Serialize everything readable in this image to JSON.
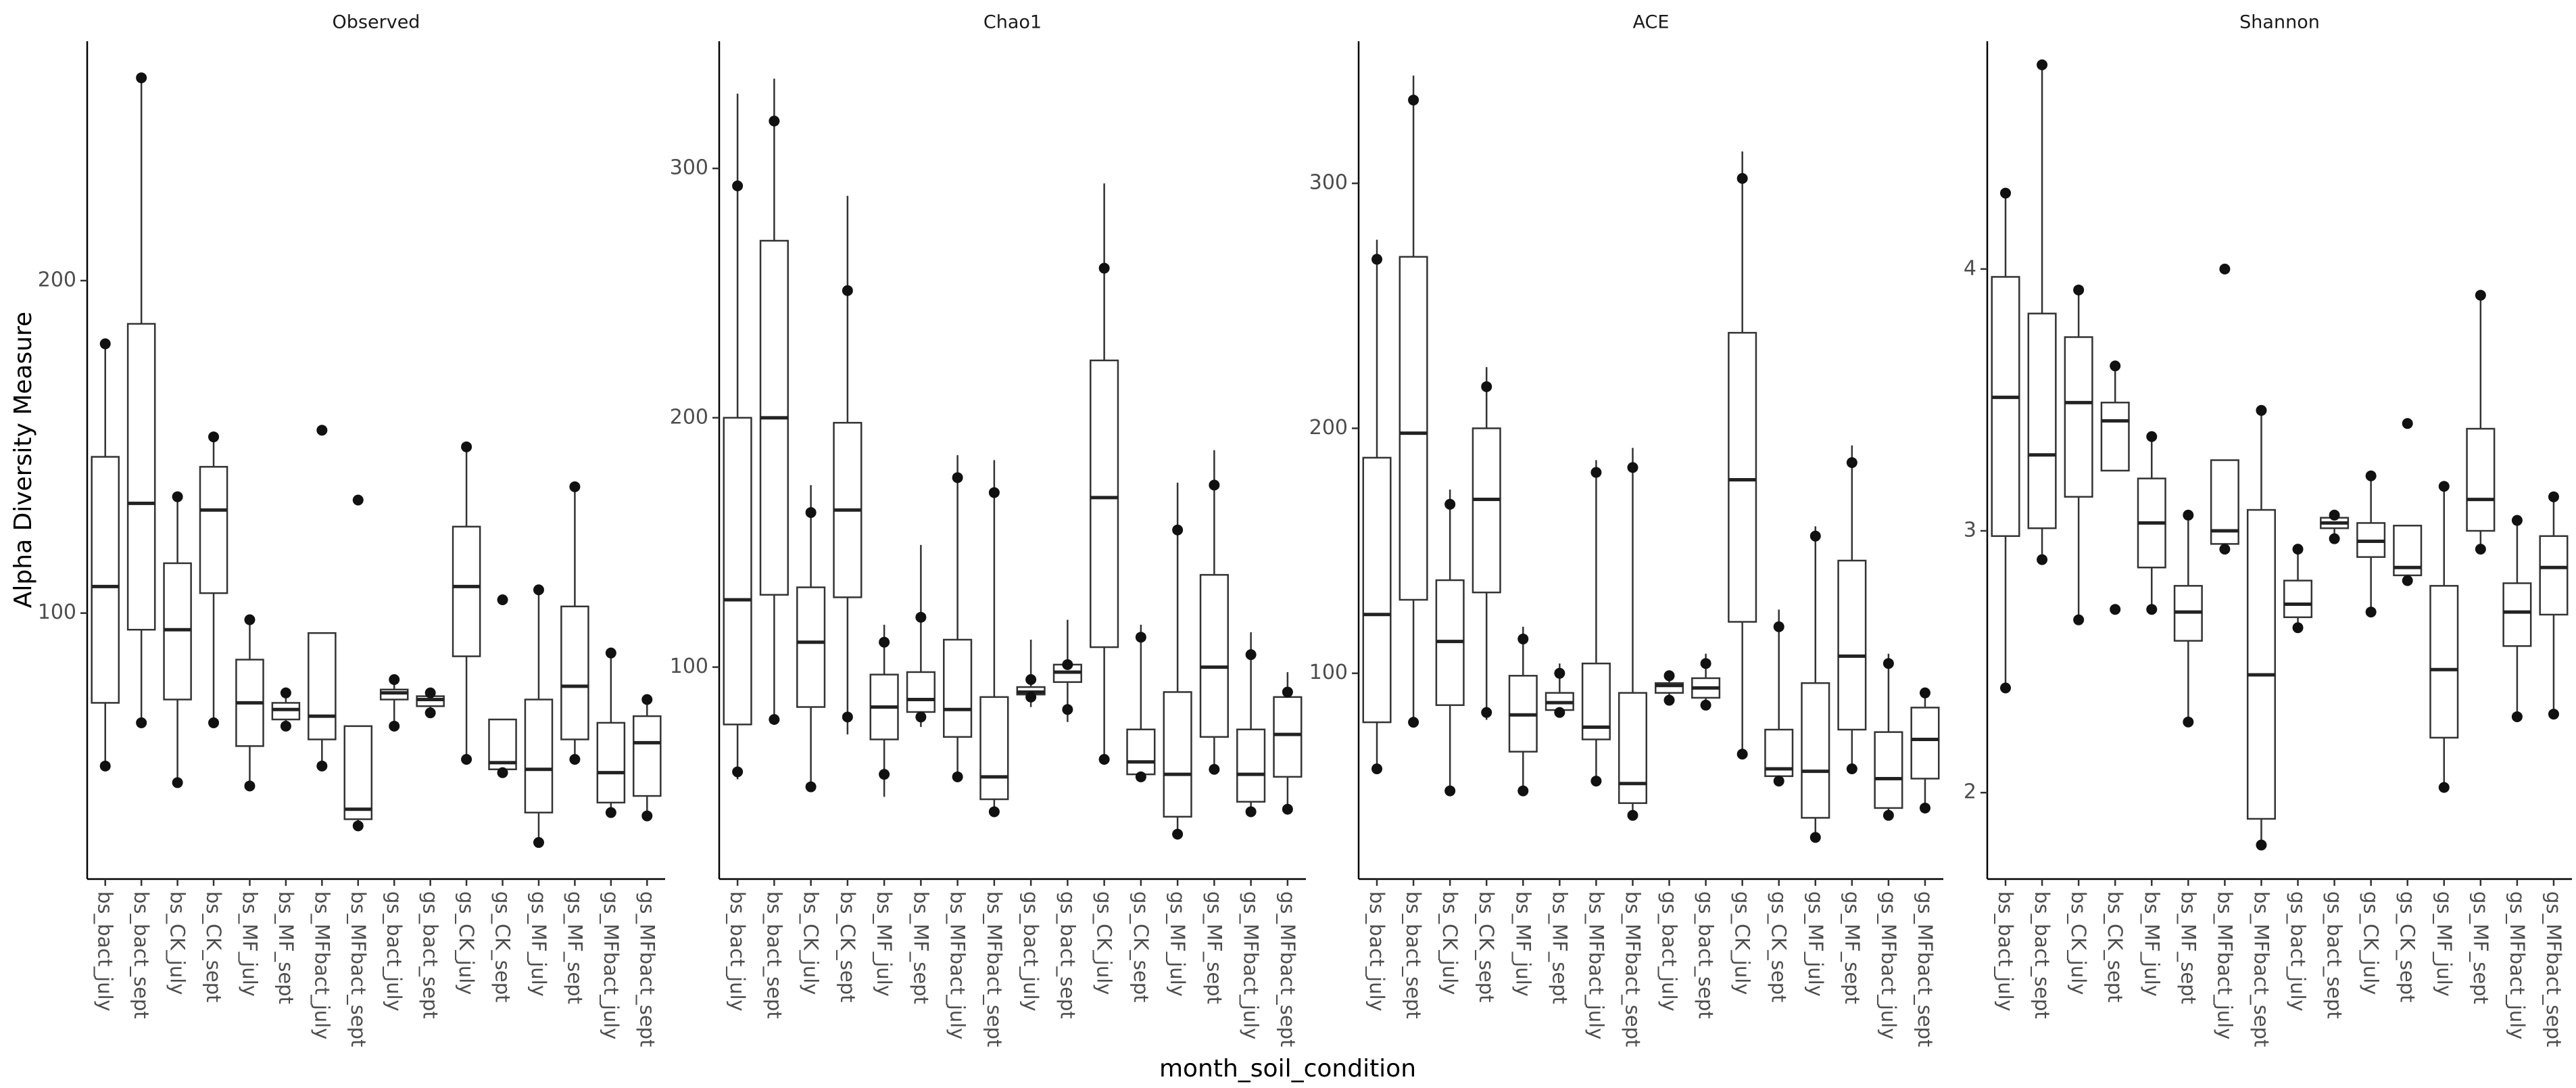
{
  "xlabel": "month_soil_condition",
  "ylabel": "Alpha Diversity Measure",
  "chart_data": [
    {
      "type": "box",
      "title": "Observed",
      "categories": [
        "bs_bact_july",
        "bs_bact_sept",
        "bs_CK_july",
        "bs_CK_sept",
        "bs_MF_july",
        "bs_MF_sept",
        "bs_MFbact_july",
        "bs_MFbact_sept",
        "gs_bact_july",
        "gs_bact_sept",
        "gs_CK_july",
        "gs_CK_sept",
        "gs_MF_july",
        "gs_MF_sept",
        "gs_MFbact_july",
        "gs_MFbact_sept"
      ],
      "ylim": [
        20,
        272
      ],
      "yticks": [
        100,
        200
      ],
      "boxes": [
        {
          "min": 54,
          "q1": 73,
          "median": 108,
          "q3": 147,
          "max": 181,
          "points": [
            181,
            54
          ]
        },
        {
          "min": 67,
          "q1": 95,
          "median": 133,
          "q3": 187,
          "max": 261,
          "points": [
            261,
            67
          ]
        },
        {
          "min": 49,
          "q1": 74,
          "median": 95,
          "q3": 115,
          "max": 136,
          "points": [
            135,
            49
          ]
        },
        {
          "min": 67,
          "q1": 106,
          "median": 131,
          "q3": 144,
          "max": 153,
          "points": [
            153,
            67
          ]
        },
        {
          "min": 48,
          "q1": 60,
          "median": 73,
          "q3": 86,
          "max": 98,
          "points": [
            98,
            48
          ]
        },
        {
          "min": 66,
          "q1": 68,
          "median": 71,
          "q3": 73,
          "max": 76,
          "points": [
            76,
            66
          ]
        },
        {
          "min": 54,
          "q1": 62,
          "median": 69,
          "q3": 94,
          "max": 94,
          "points": [
            155,
            54
          ]
        },
        {
          "min": 36,
          "q1": 38,
          "median": 41,
          "q3": 66,
          "max": 66,
          "points": [
            134,
            36
          ]
        },
        {
          "min": 66,
          "q1": 74,
          "median": 76,
          "q3": 77,
          "max": 81,
          "points": [
            80,
            66
          ]
        },
        {
          "min": 70,
          "q1": 72,
          "median": 74,
          "q3": 75,
          "max": 76,
          "points": [
            76,
            70
          ]
        },
        {
          "min": 56,
          "q1": 87,
          "median": 108,
          "q3": 126,
          "max": 150,
          "points": [
            150,
            56
          ]
        },
        {
          "min": 52,
          "q1": 53,
          "median": 55,
          "q3": 68,
          "max": 68,
          "points": [
            104,
            52
          ]
        },
        {
          "min": 31,
          "q1": 40,
          "median": 53,
          "q3": 74,
          "max": 108,
          "points": [
            107,
            31
          ]
        },
        {
          "min": 56,
          "q1": 62,
          "median": 78,
          "q3": 102,
          "max": 138,
          "points": [
            138,
            56
          ]
        },
        {
          "min": 40,
          "q1": 43,
          "median": 52,
          "q3": 67,
          "max": 88,
          "points": [
            88,
            40
          ]
        },
        {
          "min": 39,
          "q1": 45,
          "median": 61,
          "q3": 69,
          "max": 74,
          "points": [
            74,
            39
          ]
        }
      ]
    },
    {
      "type": "box",
      "title": "Chao1",
      "categories": [
        "bs_bact_july",
        "bs_bact_sept",
        "bs_CK_july",
        "bs_CK_sept",
        "bs_MF_july",
        "bs_MF_sept",
        "bs_MFbact_july",
        "bs_MFbact_sept",
        "gs_bact_july",
        "gs_bact_sept",
        "gs_CK_july",
        "gs_CK_sept",
        "gs_MF_july",
        "gs_MF_sept",
        "gs_MFbact_july",
        "gs_MFbact_sept"
      ],
      "ylim": [
        15,
        351
      ],
      "yticks": [
        100,
        200,
        300
      ],
      "boxes": [
        {
          "min": 55,
          "q1": 77,
          "median": 127,
          "q3": 200,
          "max": 330,
          "points": [
            293,
            58
          ]
        },
        {
          "min": 79,
          "q1": 129,
          "median": 200,
          "q3": 271,
          "max": 336,
          "points": [
            319,
            79
          ]
        },
        {
          "min": 52,
          "q1": 84,
          "median": 110,
          "q3": 132,
          "max": 173,
          "points": [
            162,
            52
          ]
        },
        {
          "min": 73,
          "q1": 128,
          "median": 163,
          "q3": 198,
          "max": 289,
          "points": [
            251,
            80
          ]
        },
        {
          "min": 48,
          "q1": 71,
          "median": 84,
          "q3": 97,
          "max": 117,
          "points": [
            110,
            57
          ]
        },
        {
          "min": 76,
          "q1": 82,
          "median": 87,
          "q3": 98,
          "max": 149,
          "points": [
            120,
            80
          ]
        },
        {
          "min": 56,
          "q1": 72,
          "median": 83,
          "q3": 111,
          "max": 185,
          "points": [
            176,
            56
          ]
        },
        {
          "min": 40,
          "q1": 47,
          "median": 56,
          "q3": 88,
          "max": 183,
          "points": [
            170,
            42
          ]
        },
        {
          "min": 84,
          "q1": 89,
          "median": 90,
          "q3": 92,
          "max": 111,
          "points": [
            95,
            88
          ]
        },
        {
          "min": 78,
          "q1": 94,
          "median": 98,
          "q3": 101,
          "max": 119,
          "points": [
            101,
            83
          ]
        },
        {
          "min": 62,
          "q1": 108,
          "median": 168,
          "q3": 223,
          "max": 294,
          "points": [
            260,
            63
          ]
        },
        {
          "min": 54,
          "q1": 57,
          "median": 62,
          "q3": 75,
          "max": 117,
          "points": [
            112,
            56
          ]
        },
        {
          "min": 33,
          "q1": 40,
          "median": 57,
          "q3": 90,
          "max": 174,
          "points": [
            155,
            33
          ]
        },
        {
          "min": 58,
          "q1": 72,
          "median": 100,
          "q3": 137,
          "max": 187,
          "points": [
            173,
            59
          ]
        },
        {
          "min": 40,
          "q1": 46,
          "median": 57,
          "q3": 75,
          "max": 114,
          "points": [
            105,
            42
          ]
        },
        {
          "min": 42,
          "q1": 56,
          "median": 73,
          "q3": 88,
          "max": 98,
          "points": [
            90,
            43
          ]
        }
      ]
    },
    {
      "type": "box",
      "title": "ACE",
      "categories": [
        "bs_bact_july",
        "bs_bact_sept",
        "bs_CK_july",
        "bs_CK_sept",
        "bs_MF_july",
        "bs_MF_sept",
        "bs_MFbact_july",
        "bs_MFbact_sept",
        "gs_bact_july",
        "gs_bact_sept",
        "gs_CK_july",
        "gs_CK_sept",
        "gs_MF_july",
        "gs_MF_sept",
        "gs_MFbact_july",
        "gs_MFbact_sept"
      ],
      "ylim": [
        16,
        358
      ],
      "yticks": [
        100,
        200,
        300
      ],
      "boxes": [
        {
          "min": 59,
          "q1": 80,
          "median": 124,
          "q3": 188,
          "max": 277,
          "points": [
            269,
            61
          ]
        },
        {
          "min": 80,
          "q1": 130,
          "median": 198,
          "q3": 270,
          "max": 344,
          "points": [
            334,
            80
          ]
        },
        {
          "min": 52,
          "q1": 87,
          "median": 113,
          "q3": 138,
          "max": 175,
          "points": [
            169,
            52
          ]
        },
        {
          "min": 81,
          "q1": 133,
          "median": 171,
          "q3": 200,
          "max": 225,
          "points": [
            217,
            84
          ]
        },
        {
          "min": 51,
          "q1": 68,
          "median": 83,
          "q3": 99,
          "max": 119,
          "points": [
            114,
            52
          ]
        },
        {
          "min": 82,
          "q1": 85,
          "median": 88,
          "q3": 92,
          "max": 104,
          "points": [
            100,
            84
          ]
        },
        {
          "min": 56,
          "q1": 73,
          "median": 78,
          "q3": 104,
          "max": 187,
          "points": [
            182,
            56
          ]
        },
        {
          "min": 41,
          "q1": 47,
          "median": 55,
          "q3": 92,
          "max": 192,
          "points": [
            184,
            42
          ]
        },
        {
          "min": 88,
          "q1": 92,
          "median": 95,
          "q3": 96,
          "max": 101,
          "points": [
            99,
            89
          ]
        },
        {
          "min": 86,
          "q1": 90,
          "median": 94,
          "q3": 98,
          "max": 108,
          "points": [
            104,
            87
          ]
        },
        {
          "min": 68,
          "q1": 121,
          "median": 179,
          "q3": 239,
          "max": 313,
          "points": [
            302,
            67
          ]
        },
        {
          "min": 55,
          "q1": 58,
          "median": 61,
          "q3": 77,
          "max": 126,
          "points": [
            119,
            56
          ]
        },
        {
          "min": 32,
          "q1": 41,
          "median": 60,
          "q3": 96,
          "max": 160,
          "points": [
            156,
            33
          ]
        },
        {
          "min": 61,
          "q1": 77,
          "median": 107,
          "q3": 146,
          "max": 193,
          "points": [
            186,
            61
          ]
        },
        {
          "min": 40,
          "q1": 45,
          "median": 57,
          "q3": 76,
          "max": 108,
          "points": [
            104,
            42
          ]
        },
        {
          "min": 44,
          "q1": 57,
          "median": 73,
          "q3": 86,
          "max": 94,
          "points": [
            92,
            45
          ]
        }
      ]
    },
    {
      "type": "box",
      "title": "Shannon",
      "categories": [
        "bs_bact_july",
        "bs_bact_sept",
        "bs_CK_july",
        "bs_CK_sept",
        "bs_MF_july",
        "bs_MF_sept",
        "bs_MFbact_july",
        "bs_MFbact_sept",
        "gs_bact_july",
        "gs_bact_sept",
        "gs_CK_july",
        "gs_CK_sept",
        "gs_MF_july",
        "gs_MF_sept",
        "gs_MFbact_july",
        "gs_MFbact_sept"
      ],
      "ylim": [
        1.67,
        4.87
      ],
      "yticks": [
        2,
        3,
        4
      ],
      "boxes": [
        {
          "min": 2.4,
          "q1": 2.98,
          "median": 3.51,
          "q3": 3.97,
          "max": 4.29,
          "points": [
            4.29,
            2.4
          ]
        },
        {
          "min": 2.89,
          "q1": 3.01,
          "median": 3.29,
          "q3": 3.83,
          "max": 4.78,
          "points": [
            4.78,
            2.89
          ]
        },
        {
          "min": 2.66,
          "q1": 3.13,
          "median": 3.49,
          "q3": 3.74,
          "max": 3.92,
          "points": [
            3.92,
            2.66
          ]
        },
        {
          "min": 3.23,
          "q1": 3.23,
          "median": 3.42,
          "q3": 3.49,
          "max": 3.63,
          "points": [
            3.63,
            2.7
          ]
        },
        {
          "min": 2.7,
          "q1": 2.86,
          "median": 3.03,
          "q3": 3.2,
          "max": 3.36,
          "points": [
            3.36,
            2.7
          ]
        },
        {
          "min": 2.27,
          "q1": 2.58,
          "median": 2.69,
          "q3": 2.79,
          "max": 3.06,
          "points": [
            3.06,
            2.27
          ]
        },
        {
          "min": 2.93,
          "q1": 2.95,
          "median": 3.0,
          "q3": 3.27,
          "max": 3.27,
          "points": [
            4.0,
            2.93
          ]
        },
        {
          "min": 1.8,
          "q1": 1.9,
          "median": 2.45,
          "q3": 3.08,
          "max": 3.46,
          "points": [
            3.46,
            1.8
          ]
        },
        {
          "min": 2.63,
          "q1": 2.67,
          "median": 2.72,
          "q3": 2.81,
          "max": 2.93,
          "points": [
            2.93,
            2.63
          ]
        },
        {
          "min": 2.97,
          "q1": 3.01,
          "median": 3.03,
          "q3": 3.05,
          "max": 3.06,
          "points": [
            3.06,
            2.97
          ]
        },
        {
          "min": 2.69,
          "q1": 2.9,
          "median": 2.96,
          "q3": 3.03,
          "max": 3.21,
          "points": [
            3.21,
            2.69
          ]
        },
        {
          "min": 2.81,
          "q1": 2.83,
          "median": 2.86,
          "q3": 3.02,
          "max": 3.02,
          "points": [
            3.41,
            2.81
          ]
        },
        {
          "min": 2.02,
          "q1": 2.21,
          "median": 2.47,
          "q3": 2.79,
          "max": 3.17,
          "points": [
            3.17,
            2.02
          ]
        },
        {
          "min": 2.93,
          "q1": 3.0,
          "median": 3.12,
          "q3": 3.39,
          "max": 3.9,
          "points": [
            3.9,
            2.93
          ]
        },
        {
          "min": 2.29,
          "q1": 2.56,
          "median": 2.69,
          "q3": 2.8,
          "max": 3.04,
          "points": [
            3.04,
            2.29
          ]
        },
        {
          "min": 2.3,
          "q1": 2.68,
          "median": 2.86,
          "q3": 2.98,
          "max": 3.13,
          "points": [
            3.13,
            2.3
          ]
        }
      ]
    }
  ]
}
